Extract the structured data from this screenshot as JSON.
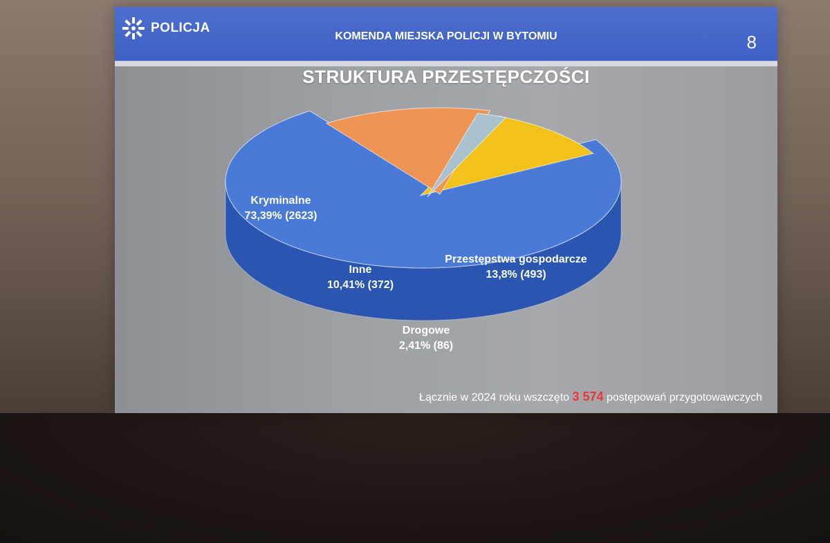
{
  "header": {
    "logo_text": "POLICJA",
    "title": "KOMENDA MIEJSKA POLICJI W BYTOMIU",
    "page_number": "8"
  },
  "slide_title": "STRUKTURA PRZESTĘPCZOŚCI",
  "footer": {
    "before": "Łącznie w 2024 roku wszczęto ",
    "number": "3 574",
    "after": " postępowań przygotowawczych"
  },
  "colors": {
    "header": "#4566cc",
    "highlight": "#e8363a"
  },
  "chart_data": {
    "type": "pie",
    "title": "STRUKTURA PRZESTĘPCZOŚCI",
    "style": "3d-exploded",
    "slices": [
      {
        "name": "Kryminalne",
        "percent": 73.39,
        "count": 2623,
        "label": "73,39% (2623)",
        "color": "#4a7ad8",
        "side": "#2a55b0"
      },
      {
        "name": "Przestępstwa gospodarcze",
        "percent": 13.8,
        "count": 493,
        "label": "13,8% (493)",
        "color": "#ee9455",
        "side": "#9a5a3e"
      },
      {
        "name": "Drogowe",
        "percent": 2.41,
        "count": 86,
        "label": "2,41% (86)",
        "color": "#a9c2cf",
        "side": "#6f7f88"
      },
      {
        "name": "Inne",
        "percent": 10.41,
        "count": 372,
        "label": "10,41% (372)",
        "color": "#f2c21a",
        "side": "#e0a215"
      }
    ]
  }
}
